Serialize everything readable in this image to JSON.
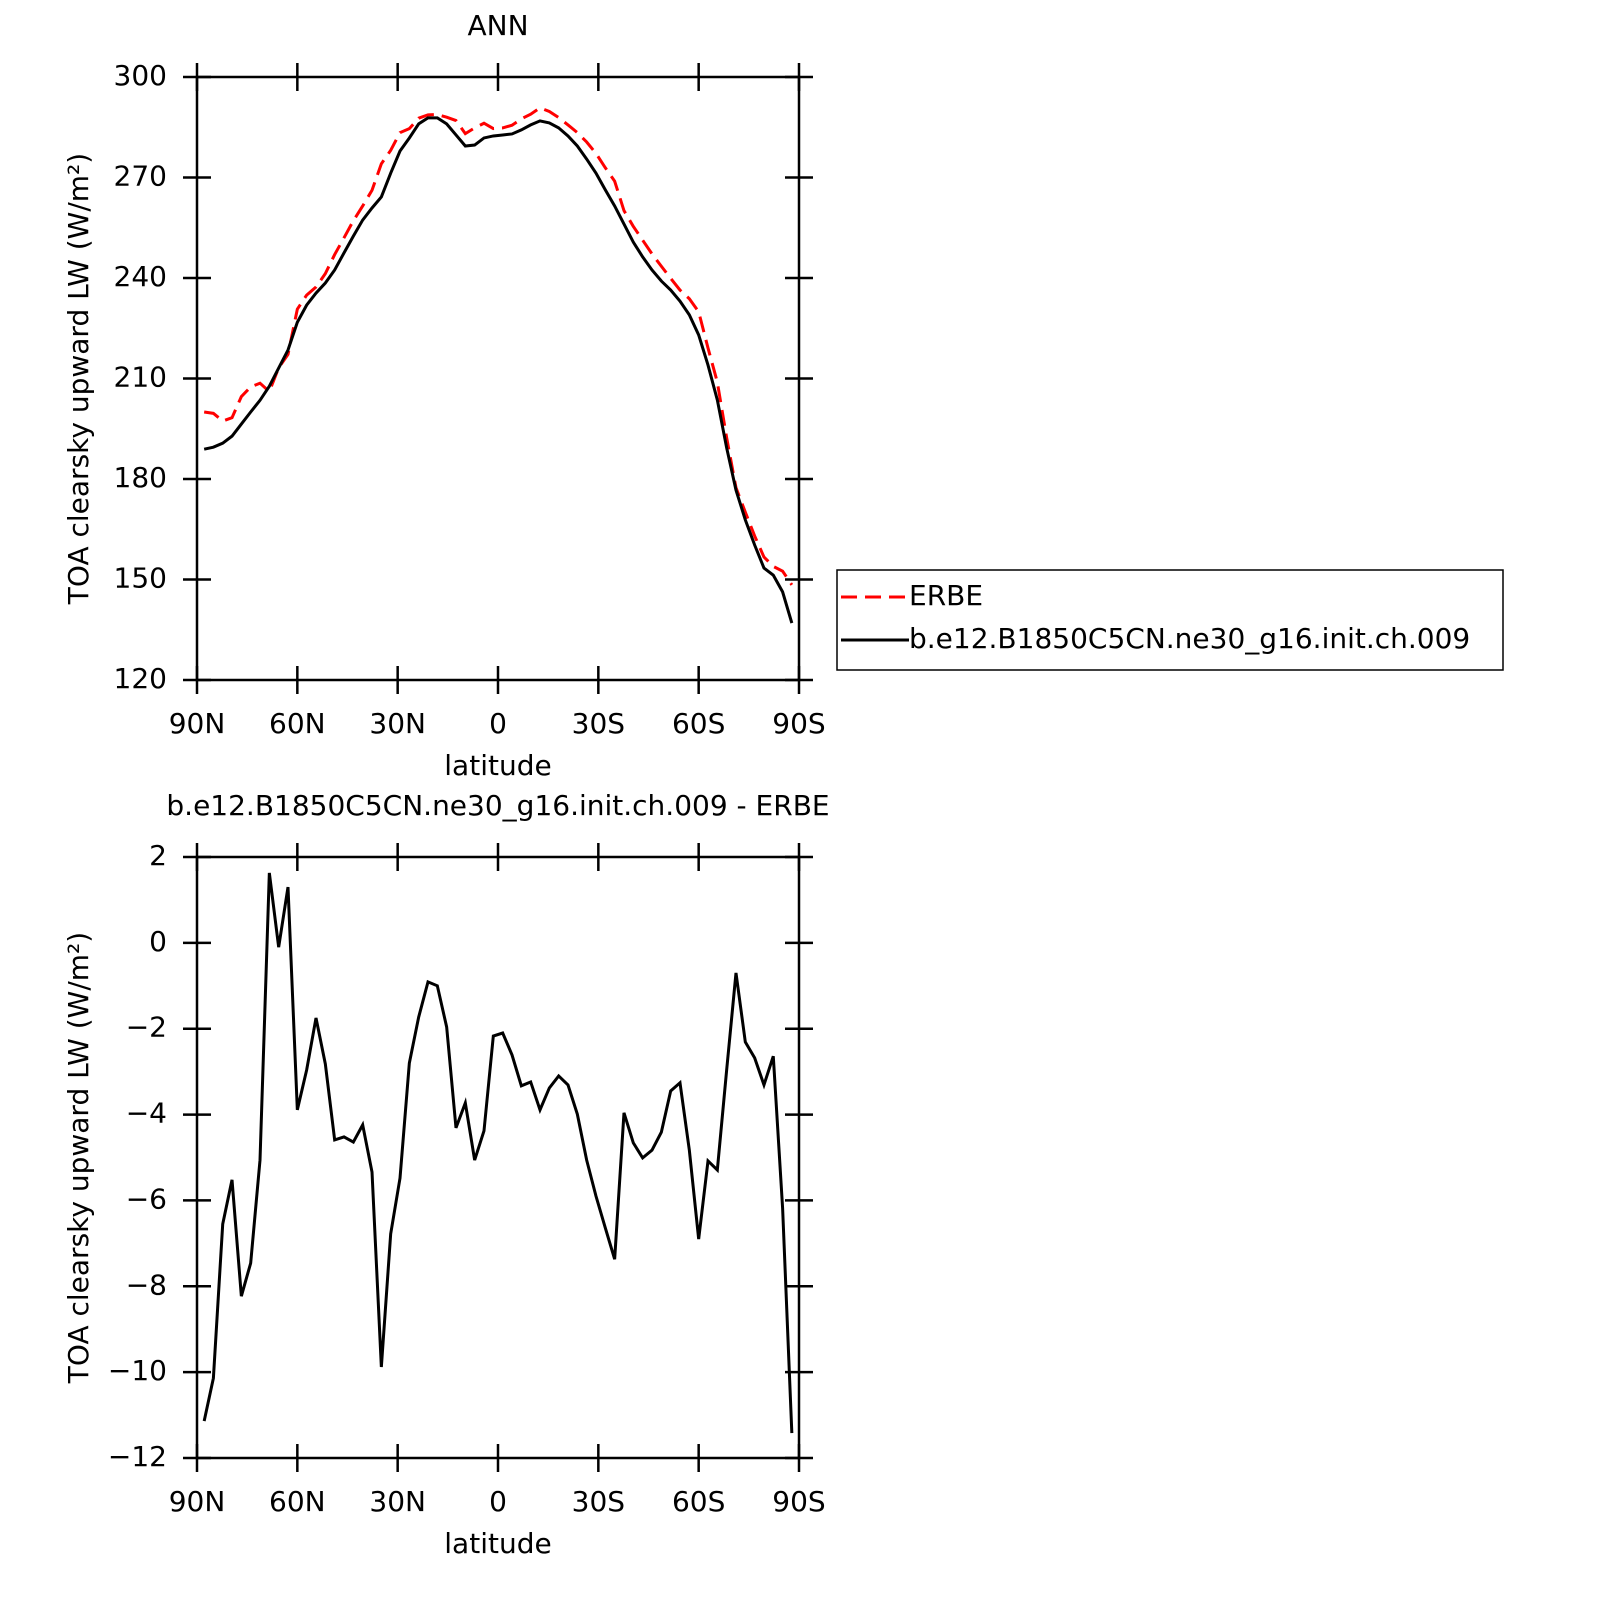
{
  "chart_data": [
    {
      "type": "line",
      "title": "ANN",
      "xlabel": "latitude",
      "ylabel": "TOA clearsky upward LW (W/m²)",
      "x": [
        87.86,
        85.1,
        82.31,
        79.53,
        76.74,
        73.95,
        71.16,
        68.37,
        65.58,
        62.79,
        60,
        57.21,
        54.42,
        51.63,
        48.84,
        46.04,
        43.25,
        40.46,
        37.67,
        34.88,
        32.09,
        29.3,
        26.51,
        23.72,
        20.93,
        18.14,
        15.35,
        12.56,
        9.77,
        6.98,
        4.19,
        1.4,
        -1.4,
        -4.19,
        -6.98,
        -9.77,
        -12.56,
        -15.35,
        -18.14,
        -20.93,
        -23.72,
        -26.51,
        -29.3,
        -32.09,
        -34.88,
        -37.67,
        -40.46,
        -43.25,
        -46.04,
        -48.84,
        -51.63,
        -54.42,
        -57.21,
        -60,
        -62.79,
        -65.58,
        -68.37,
        -71.16,
        -73.95,
        -76.74,
        -79.53,
        -82.31,
        -85.1,
        -87.86
      ],
      "series": [
        {
          "name": "ERBE",
          "color": "#ff0000",
          "dash": "dashed",
          "values": [
            200.0,
            199.6,
            197.3,
            198.3,
            204.6,
            207.5,
            208.6,
            206.1,
            213.2,
            217.2,
            230.7,
            234.9,
            237.3,
            241.3,
            247.0,
            252.0,
            257.1,
            261.5,
            266.2,
            274.1,
            278.1,
            283.4,
            284.6,
            287.7,
            288.7,
            288.8,
            288.0,
            287.0,
            283.1,
            284.8,
            286.2,
            284.6,
            284.8,
            285.6,
            287.5,
            288.9,
            290.8,
            289.7,
            287.9,
            285.7,
            283.4,
            280.6,
            277.2,
            272.9,
            268.9,
            260.1,
            255.4,
            251.3,
            247.2,
            243.5,
            239.9,
            236.4,
            233.8,
            229.9,
            219.1,
            208.9,
            192.3,
            177.4,
            170.1,
            163.0,
            156.7,
            153.9,
            152.5,
            148.4
          ]
        },
        {
          "name": "b.e12.B1850C5CN.ne30_g16.init.ch.009",
          "color": "#000000",
          "dash": "solid",
          "values": [
            188.9,
            189.5,
            190.7,
            192.8,
            196.4,
            200.0,
            203.5,
            207.7,
            213.1,
            218.5,
            226.8,
            231.9,
            235.5,
            238.5,
            242.4,
            247.5,
            252.5,
            257.3,
            260.9,
            264.2,
            271.3,
            277.9,
            281.8,
            286.0,
            287.8,
            287.8,
            286.0,
            282.7,
            279.4,
            279.7,
            281.8,
            282.4,
            282.7,
            283.0,
            284.2,
            285.7,
            286.9,
            286.3,
            284.8,
            282.4,
            279.4,
            275.5,
            271.3,
            266.3,
            261.5,
            256.1,
            250.7,
            246.3,
            242.4,
            239.1,
            236.4,
            233.1,
            229.0,
            223.0,
            214.0,
            203.6,
            189.3,
            176.7,
            167.8,
            160.3,
            153.4,
            151.3,
            146.3,
            137.0
          ]
        }
      ],
      "xlim": [
        90,
        -90
      ],
      "xticks": [
        {
          "value": 90,
          "label": "90N"
        },
        {
          "value": 60,
          "label": "60N"
        },
        {
          "value": 30,
          "label": "30N"
        },
        0,
        {
          "value": -30,
          "label": "30S"
        },
        {
          "value": -60,
          "label": "60S"
        },
        {
          "value": -90,
          "label": "90S"
        }
      ],
      "ylim": [
        120,
        300
      ],
      "yticks": [
        120,
        150,
        180,
        210,
        240,
        270,
        300
      ],
      "legend": "outside-right"
    },
    {
      "type": "line",
      "title": "b.e12.B1850C5CN.ne30_g16.init.ch.009 - ERBE",
      "xlabel": "latitude",
      "ylabel": "TOA clearsky upward LW (W/m²)",
      "x": [
        87.86,
        85.1,
        82.31,
        79.53,
        76.74,
        73.95,
        71.16,
        68.37,
        65.58,
        62.79,
        60,
        57.21,
        54.42,
        51.63,
        48.84,
        46.04,
        43.25,
        40.46,
        37.67,
        34.88,
        32.09,
        29.3,
        26.51,
        23.72,
        20.93,
        18.14,
        15.35,
        12.56,
        9.77,
        6.98,
        4.19,
        1.4,
        -1.4,
        -4.19,
        -6.98,
        -9.77,
        -12.56,
        -15.35,
        -18.14,
        -20.93,
        -23.72,
        -26.51,
        -29.3,
        -32.09,
        -34.88,
        -37.67,
        -40.46,
        -43.25,
        -46.04,
        -48.84,
        -51.63,
        -54.42,
        -57.21,
        -60,
        -62.79,
        -65.58,
        -68.37,
        -71.16,
        -73.95,
        -76.74,
        -79.53,
        -82.31,
        -85.1,
        -87.86
      ],
      "color": "#000000",
      "values": [
        -11.14,
        -10.14,
        -6.55,
        -5.52,
        -8.23,
        -7.46,
        -5.06,
        1.63,
        -0.1,
        1.3,
        -3.89,
        -2.96,
        -1.75,
        -2.82,
        -4.59,
        -4.52,
        -4.64,
        -4.24,
        -5.34,
        -9.88,
        -6.78,
        -5.48,
        -2.8,
        -1.73,
        -0.91,
        -1.0,
        -1.96,
        -4.31,
        -3.73,
        -5.06,
        -4.38,
        -2.17,
        -2.1,
        -2.61,
        -3.33,
        -3.24,
        -3.89,
        -3.38,
        -3.1,
        -3.31,
        -3.99,
        -5.06,
        -5.9,
        -6.64,
        -7.37,
        -3.96,
        -4.66,
        -5.01,
        -4.83,
        -4.41,
        -3.45,
        -3.26,
        -4.83,
        -6.9,
        -5.08,
        -5.29,
        -2.96,
        -0.7,
        -2.31,
        -2.68,
        -3.31,
        -2.64,
        -6.18,
        -11.42
      ],
      "xlim": [
        90,
        -90
      ],
      "xticks": [
        {
          "value": 90,
          "label": "90N"
        },
        {
          "value": 60,
          "label": "60N"
        },
        {
          "value": 30,
          "label": "30N"
        },
        0,
        {
          "value": -30,
          "label": "30S"
        },
        {
          "value": -60,
          "label": "60S"
        },
        {
          "value": -90,
          "label": "90S"
        }
      ],
      "ylim": [
        -12,
        2
      ],
      "yticks": [
        {
          "value": -12,
          "label": "−12"
        },
        {
          "value": -10,
          "label": "−10"
        },
        {
          "value": -8,
          "label": "−8"
        },
        {
          "value": -6,
          "label": "−6"
        },
        {
          "value": -4,
          "label": "−4"
        },
        {
          "value": -2,
          "label": "−2"
        },
        0,
        2
      ]
    }
  ]
}
